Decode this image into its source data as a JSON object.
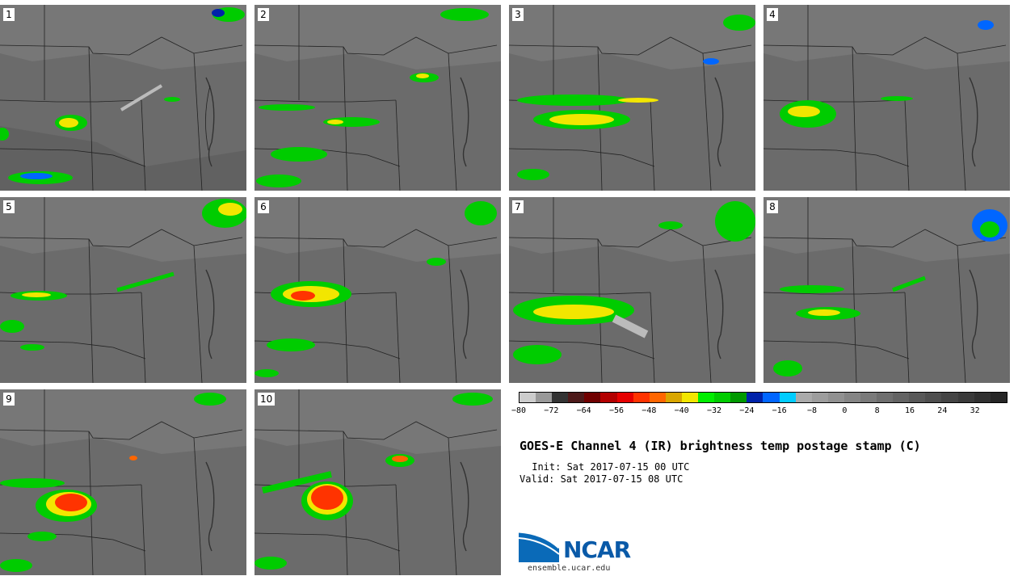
{
  "panels": [
    {
      "label": "1"
    },
    {
      "label": "2"
    },
    {
      "label": "3"
    },
    {
      "label": "4"
    },
    {
      "label": "5"
    },
    {
      "label": "6"
    },
    {
      "label": "7"
    },
    {
      "label": "8"
    },
    {
      "label": "9"
    },
    {
      "label": "10"
    }
  ],
  "colorbar": {
    "colors": [
      "#cccccc",
      "#999999",
      "#333333",
      "#4d1a1a",
      "#700000",
      "#b30000",
      "#e60000",
      "#ff3300",
      "#ff6600",
      "#d9a600",
      "#f2e600",
      "#00ee00",
      "#00cc00",
      "#009900",
      "#0022aa",
      "#0066ff",
      "#00ccff",
      "#aaaaaa",
      "#9d9d9d",
      "#919191",
      "#858585",
      "#7a7a7a",
      "#6e6e6e",
      "#636363",
      "#585858",
      "#4e4e4e",
      "#444444",
      "#3a3a3a",
      "#303030",
      "#262626"
    ],
    "tick_values": [
      "-80",
      "-72",
      "-64",
      "-56",
      "-48",
      "-40",
      "-32",
      "-24",
      "-16",
      "-8",
      "0",
      "8",
      "16",
      "24",
      "32"
    ]
  },
  "title": "GOES-E Channel 4 (IR) brightness temp postage stamp (C)",
  "init": " Init: Sat 2017-07-15 00 UTC",
  "valid": "Valid: Sat 2017-07-15 08 UTC",
  "logo": {
    "name": "NCAR",
    "url": "ensemble.ucar.edu"
  }
}
